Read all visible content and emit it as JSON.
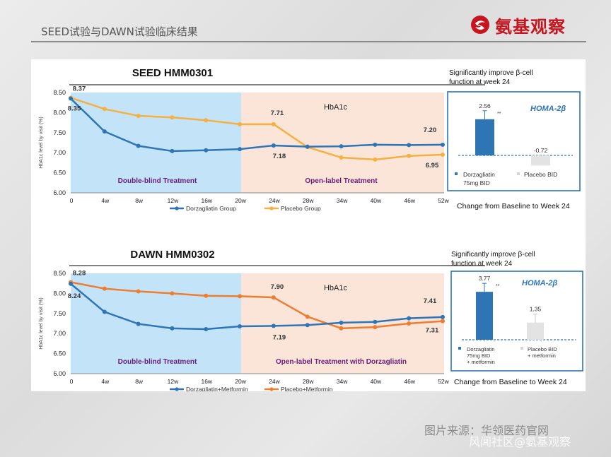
{
  "header": {
    "title": "SEED试验与DAWN试验临床结果",
    "brand": "氨基观察"
  },
  "source_note": "图片来源：华领医药官网",
  "watermark": "风闻社区@氨基观察",
  "colors": {
    "drug": "#2e75b6",
    "placebo1": "#f4b142",
    "placebo2": "#ed7d31",
    "dbShade": "#c3e3f8",
    "olShade": "#fbe5d9"
  },
  "chart_data": [
    {
      "type": "line",
      "title": "SEED HMM0301",
      "ylabel": "HbA1c level by visit (%)",
      "ylim": [
        6.0,
        8.5
      ],
      "yticks": [
        "6.00",
        "6.50",
        "7.00",
        "7.50",
        "8.00",
        "8.50"
      ],
      "categories": [
        "0",
        "4w",
        "8w",
        "12w",
        "16w",
        "20w",
        "24w",
        "28w",
        "34w",
        "40w",
        "46w",
        "52w"
      ],
      "region_title": "HbA1c",
      "regions": [
        "Double-blind Treatment",
        "Open-label Treatment"
      ],
      "series": [
        {
          "name": "Dorzagliatin Group",
          "values": [
            8.35,
            7.53,
            7.17,
            7.04,
            7.06,
            7.09,
            7.18,
            7.15,
            7.16,
            7.2,
            7.19,
            7.2
          ]
        },
        {
          "name": "Placebo Group",
          "values": [
            8.37,
            8.09,
            7.92,
            7.88,
            7.81,
            7.71,
            7.71,
            7.14,
            6.88,
            6.83,
            6.92,
            6.95
          ]
        }
      ],
      "labels": [
        "8.37",
        "8.35",
        "7.71",
        "7.18",
        "7.20",
        "6.95"
      ],
      "inset": {
        "heading": "Significantly improve β-cell function at week 24",
        "title": "HOMA-2β",
        "values": [
          2.56,
          -0.72
        ],
        "value_labels": [
          "2.56",
          "-0.72"
        ],
        "sig": "**",
        "legend": [
          "Dorzagliatin 75mg BID",
          "Placebo BID"
        ],
        "footer": "Change from Baseline to Week 24"
      }
    },
    {
      "type": "line",
      "title": "DAWN HMM0302",
      "ylabel": "HbA1c level by visit (%)",
      "ylim": [
        6.0,
        8.5
      ],
      "yticks": [
        "6.00",
        "6.50",
        "7.00",
        "7.50",
        "8.00",
        "8.50"
      ],
      "categories": [
        "0",
        "4w",
        "8w",
        "12w",
        "16w",
        "20w",
        "24w",
        "28w",
        "34w",
        "40w",
        "46w",
        "52w"
      ],
      "region_title": "HbA1c",
      "regions": [
        "Double-blind Treatment",
        "Open-label Treatment with Dorzagliatin"
      ],
      "series": [
        {
          "name": "Dorzagliatin+Metformin",
          "values": [
            8.24,
            7.54,
            7.24,
            7.13,
            7.11,
            7.18,
            7.19,
            7.21,
            7.27,
            7.29,
            7.38,
            7.41
          ]
        },
        {
          "name": "Placebo+Metformin",
          "values": [
            8.28,
            8.12,
            8.05,
            8.0,
            7.94,
            7.93,
            7.9,
            7.42,
            7.13,
            7.16,
            7.25,
            7.31
          ]
        }
      ],
      "labels": [
        "8.28",
        "8.24",
        "7.90",
        "7.19",
        "7.41",
        "7.31"
      ],
      "inset": {
        "heading": "Significantly improve β-cell function at week 24",
        "title": "HOMA-2β",
        "values": [
          3.77,
          1.35
        ],
        "value_labels": [
          "3.77",
          "1.35"
        ],
        "sig": "**",
        "legend": [
          "Dorzagliatin 75mg BID + metformin",
          "Placebo BID + metformin"
        ],
        "footer": "Change from Baseline to Week 24"
      }
    }
  ]
}
